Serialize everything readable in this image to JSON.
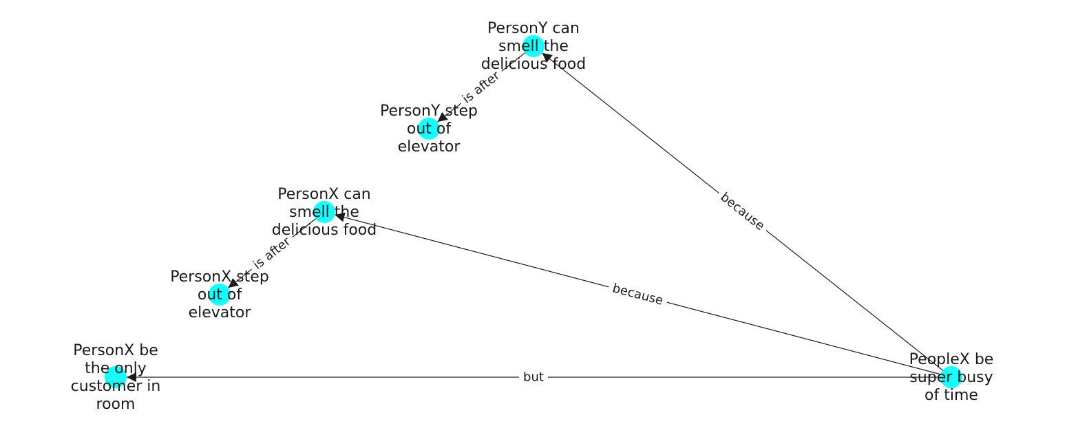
{
  "graph": {
    "node_color": "#00ffff",
    "edge_color": "#1a1a1a",
    "nodes": [
      {
        "id": "py_smell",
        "label": [
          "PersonY can",
          "smell the",
          "delicious food"
        ]
      },
      {
        "id": "py_step",
        "label": [
          "PersonY step",
          "out of",
          "elevator"
        ]
      },
      {
        "id": "px_smell",
        "label": [
          "PersonX can",
          "smell the",
          "delicious food"
        ]
      },
      {
        "id": "px_step",
        "label": [
          "PersonX step",
          "out of",
          "elevator"
        ]
      },
      {
        "id": "px_customer",
        "label": [
          "PersonX be",
          "the only",
          "customer in",
          "room"
        ]
      },
      {
        "id": "peoplex_busy",
        "label": [
          "PeopleX be",
          "super busy",
          "of time"
        ]
      }
    ],
    "edges": [
      {
        "source": "py_smell",
        "target": "py_step",
        "label": "is after"
      },
      {
        "source": "px_smell",
        "target": "px_step",
        "label": "is after"
      },
      {
        "source": "peoplex_busy",
        "target": "py_smell",
        "label": "because"
      },
      {
        "source": "peoplex_busy",
        "target": "px_smell",
        "label": "because"
      },
      {
        "source": "peoplex_busy",
        "target": "px_customer",
        "label": "but"
      }
    ]
  }
}
